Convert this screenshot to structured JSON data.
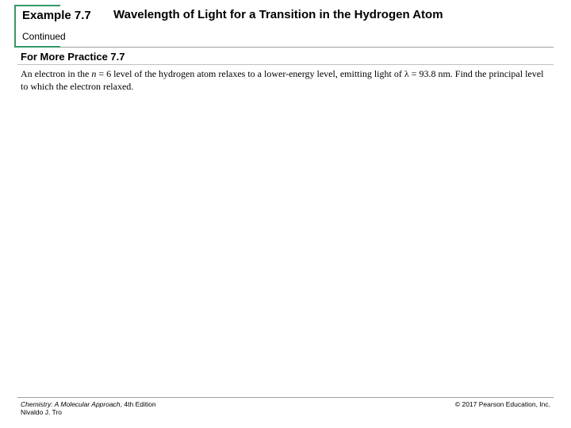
{
  "header": {
    "example_label": "Example 7.7",
    "title": "Wavelength of Light for a Transition in the Hydrogen Atom",
    "continued": "Continued"
  },
  "practice": {
    "label": "For More Practice 7.7",
    "body_pre": "An electron in the ",
    "n_symbol": "n",
    "body_mid1": " = 6 level of the hydrogen atom relaxes to a lower-energy level, emitting light of ",
    "lambda_symbol": "λ",
    "body_mid2": " = 93.8 nm. Find the principal level to which the electron relaxed."
  },
  "footer": {
    "book_title": "Chemistry: A Molecular Approach",
    "edition": ", 4th Edition",
    "author": "Nivaldo J. Tro",
    "copyright": "© 2017 Pearson Education, Inc."
  },
  "colors": {
    "bracket": "#339966",
    "rule": "#a0a0a0"
  }
}
